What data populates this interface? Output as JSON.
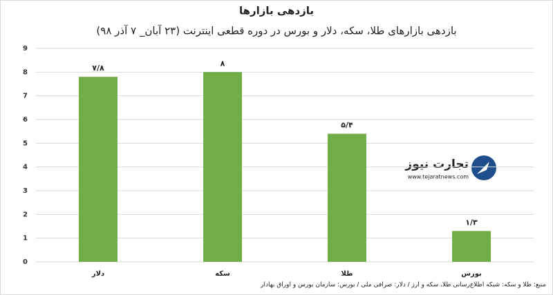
{
  "chart_data": {
    "type": "bar",
    "title": "بازدهی بازارها",
    "subtitle": "بازدهی بازارهای طلا، سکه، دلار و بورس در دوره قطعی اینترنت (۲۳ آبان_ ۷ آذر ۹۸)",
    "categories": [
      "دلار",
      "سکه",
      "طلا",
      "بورس"
    ],
    "values": [
      7.8,
      8,
      5.4,
      1.3
    ],
    "value_labels": [
      "۷/۸",
      "۸",
      "۵/۴",
      "۱/۳"
    ],
    "color": "#70ad47",
    "ylim": [
      0,
      9
    ],
    "yticks": [
      0,
      1,
      2,
      3,
      4,
      5,
      6,
      7,
      8,
      9
    ],
    "grid": true,
    "source": "منبع: طلا و سکه: شبکه اطلاع‌رسانی طلا، سکه و ارز / دلار: صرافی ملی / بورس: سازمان بورس و اوراق بهادار",
    "logo_text": "تجارت نیوز",
    "logo_url": "www.tejaratnews.com"
  }
}
